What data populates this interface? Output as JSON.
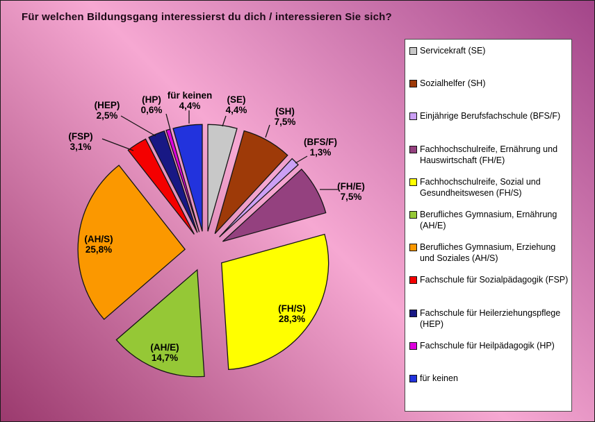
{
  "title": "Für welchen Bildungsgang interessierst du dich / interessieren Sie sich?",
  "chart_data": {
    "type": "pie",
    "exploded": true,
    "title": "Für welchen Bildungsgang interessierst du dich / interessieren Sie sich?",
    "units": "%",
    "start_angle_deg": 0,
    "direction": "clockwise",
    "legend_position": "right",
    "slices": [
      {
        "id": "se",
        "legend": "Servicekraft (SE)",
        "label": "(SE)",
        "value": 4.4,
        "value_label": "4,4%",
        "color": "#C8C8C8"
      },
      {
        "id": "sh",
        "legend": "Sozialhelfer (SH)",
        "label": "(SH)",
        "value": 7.5,
        "value_label": "7,5%",
        "color": "#9E3A08"
      },
      {
        "id": "bfsf",
        "legend": "Einjährige Berufsfachschule (BFS/F)",
        "label": "(BFS/F)",
        "value": 1.3,
        "value_label": "1,3%",
        "color": "#CBA0F5"
      },
      {
        "id": "fhe",
        "legend": "Fachhochschulreife, Ernährung und Hauswirtschaft (FH/E)",
        "label": "(FH/E)",
        "value": 7.5,
        "value_label": "7,5%",
        "color": "#94417F"
      },
      {
        "id": "fhs",
        "legend": "Fachhochschulreife, Sozial und Gesundheitswesen (FH/S)",
        "label": "(FH/S)",
        "value": 28.3,
        "value_label": "28,3%",
        "color": "#FFFF00"
      },
      {
        "id": "ahe",
        "legend": "Berufliches Gymnasium, Ernährung (AH/E)",
        "label": "(AH/E)",
        "value": 14.7,
        "value_label": "14,7%",
        "color": "#95C836"
      },
      {
        "id": "ahs",
        "legend": "Berufliches Gymnasium, Erziehung und Soziales (AH/S)",
        "label": "(AH/S)",
        "value": 25.8,
        "value_label": "25,8%",
        "color": "#FB9800"
      },
      {
        "id": "fsp",
        "legend": "Fachschule für Sozialpädagogik (FSP)",
        "label": "(FSP)",
        "value": 3.1,
        "value_label": "3,1%",
        "color": "#F40000"
      },
      {
        "id": "hep",
        "legend": "Fachschule für Heilerziehungspflege (HEP)",
        "label": "(HEP)",
        "value": 2.5,
        "value_label": "2,5%",
        "color": "#181884"
      },
      {
        "id": "hp",
        "legend": "Fachschule für Heilpädagogik (HP)",
        "label": "(HP)",
        "value": 0.6,
        "value_label": "0,6%",
        "color": "#DD00DD"
      },
      {
        "id": "keinen",
        "legend": "für keinen",
        "label": "für keinen",
        "value": 4.4,
        "value_label": "4,4%",
        "color": "#2233DD"
      }
    ]
  },
  "colors": {
    "background_dark_bottom_left": "#9B3A6E",
    "background_light_mid": "#F6A8D2",
    "background_dark_top_right": "#A34589",
    "legend_background": "#FFFFFF",
    "legend_border": "#4A4A4A",
    "slice_outline": "#141414",
    "text": "#000000",
    "title_text": "#1C0916"
  }
}
